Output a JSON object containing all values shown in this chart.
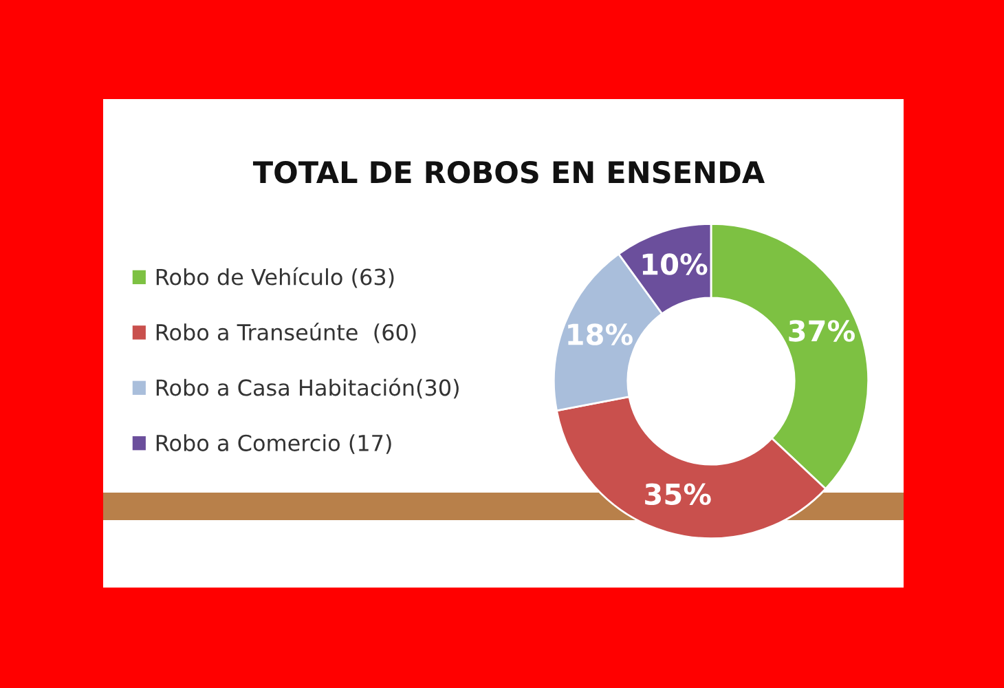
{
  "chart_data": {
    "type": "donut",
    "title": "TOTAL DE ROBOS EN ENSENDA",
    "categories": [
      "Robo de Vehículo (63)",
      "Robo a Transeúnte  (60)",
      "Robo a Casa Habitación(30)",
      "Robo a Comercio (17)"
    ],
    "values": [
      37,
      35,
      18,
      10
    ],
    "value_labels": [
      "37%",
      "35%",
      "18%",
      "10%"
    ],
    "colors": [
      "#7dc142",
      "#c9504d",
      "#a9bedb",
      "#6b4f9c"
    ],
    "legend": "left"
  }
}
